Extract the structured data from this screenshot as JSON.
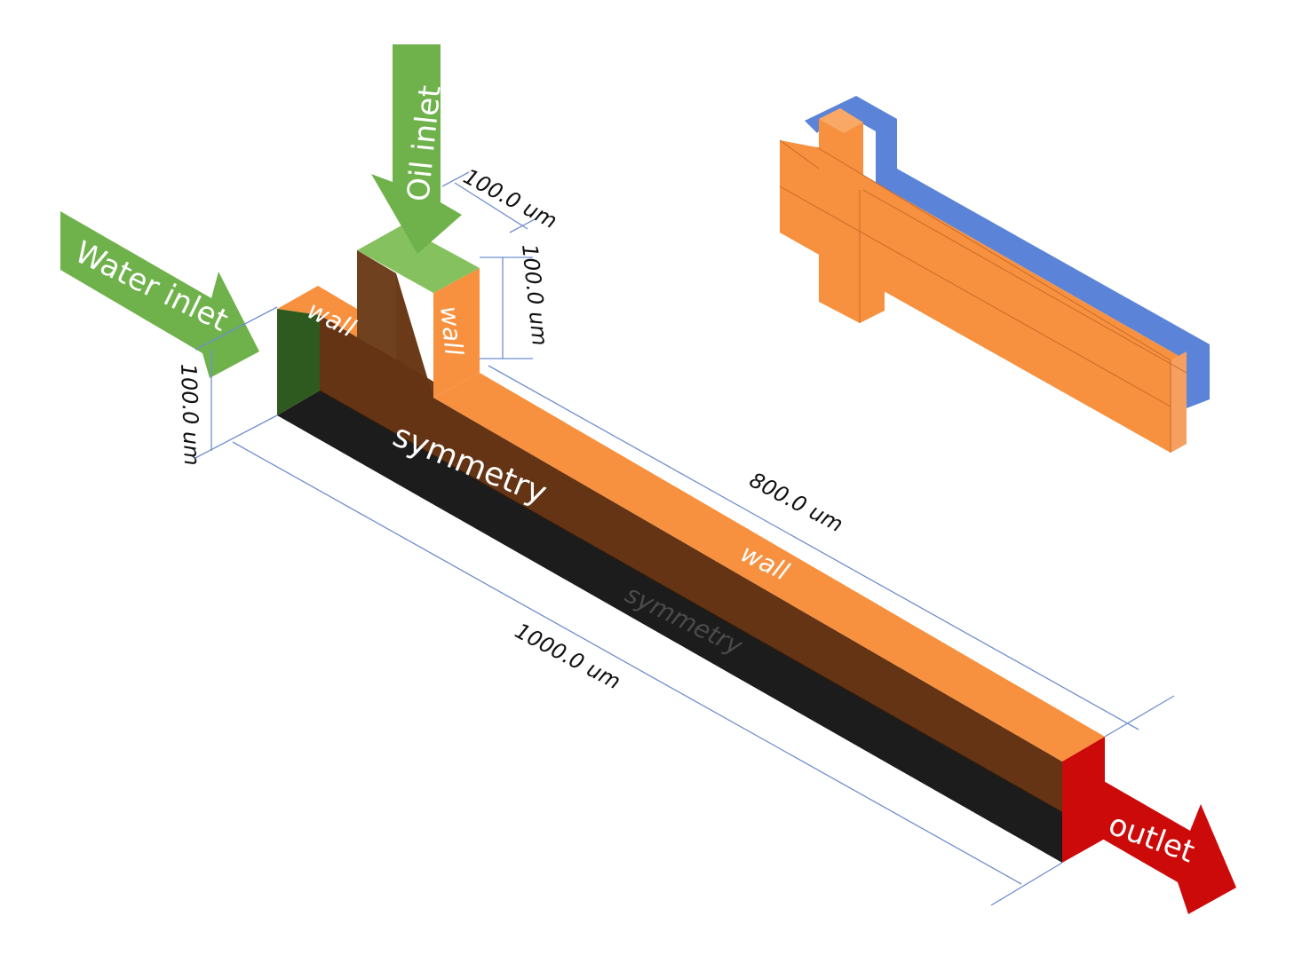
{
  "labels": {
    "water_inlet": "Water inlet",
    "oil_inlet": "Oil inlet",
    "outlet": "outlet",
    "wall_left": "wall",
    "wall_vertical": "wall",
    "wall_long": "wall",
    "symmetry_main": "symmetry",
    "symmetry_bottom": "symmetry"
  },
  "dimensions": {
    "width_top": "100.0 um",
    "height_right": "100.0 um",
    "height_left": "100.0 um",
    "length_branch": "800.0 um",
    "length_total": "1000.0 um"
  },
  "colors": {
    "inlet_green": "#6fb24c",
    "inlet_green_top": "#85c25f",
    "dark_green": "#2e5a1f",
    "wall_orange": "#f7913f",
    "brown": "#643414",
    "black": "#1c1c1c",
    "outlet_red": "#cc0a0a",
    "blue": "#5b84d8",
    "dim_line": "#6f8fcf"
  }
}
